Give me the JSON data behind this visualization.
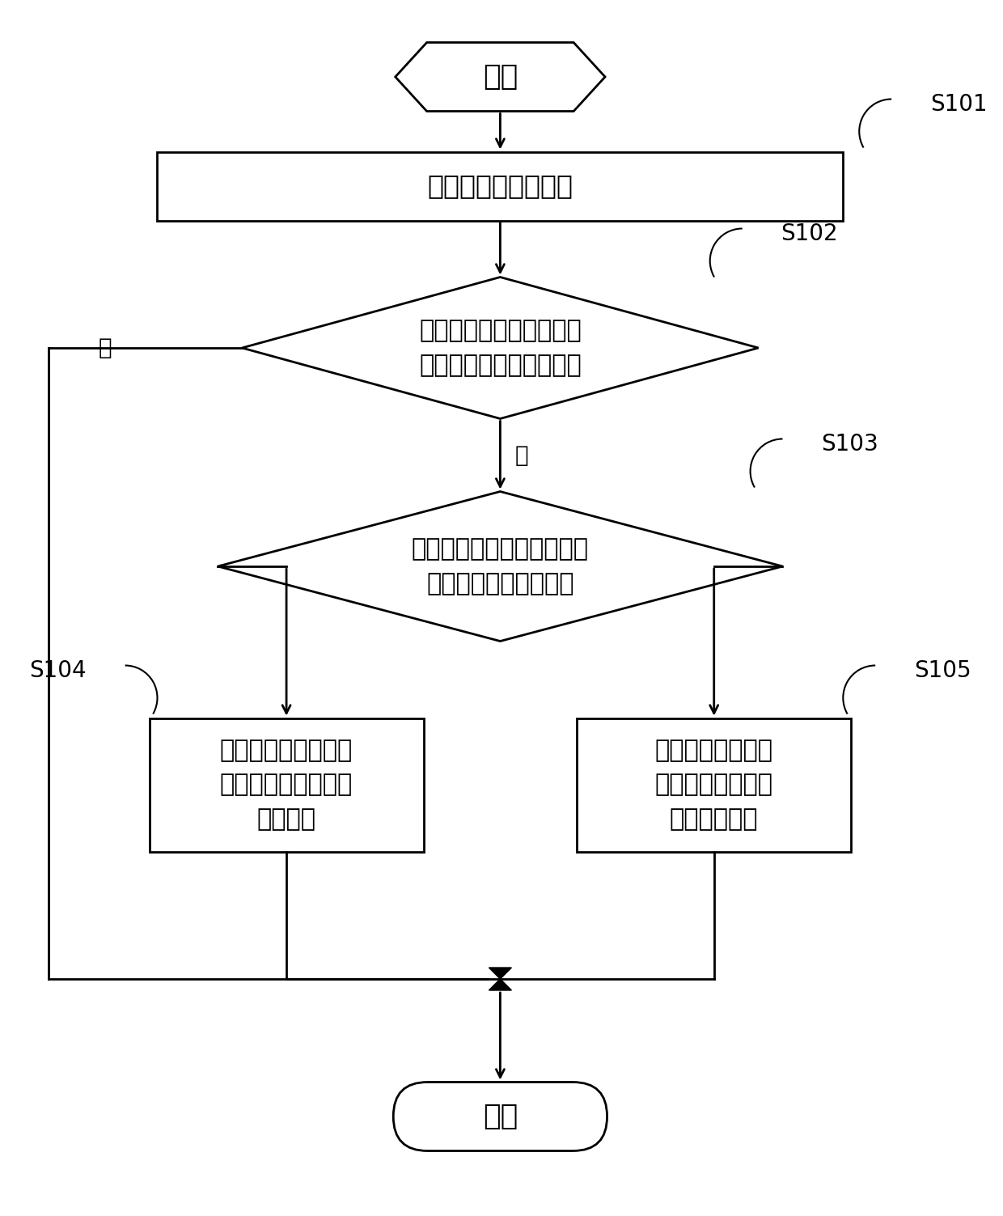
{
  "bg_color": "#ffffff",
  "line_color": "#000000",
  "text_color": "#000000",
  "start_text": "开始",
  "end_text": "结束",
  "step1_text": "获取喷烙冷媒过热度",
  "step2_text": "判断喷烙冷媒过热度是否\n处于预设过热度阀值范围",
  "step3_text": "判断喷烙冷媒过热度与预设\n过热度阀值范围的关系",
  "step4_text": "控制喷烙电子膨胀阀\n的开度增加预设第一\n开度步幅",
  "step5_text": "控制喷烙电子膨胀\n阀的开度减小预设\n第二开度步幅",
  "label1": "S101",
  "label2": "S102",
  "label3": "S103",
  "label4": "S104",
  "label5": "S105",
  "yes_text": "是",
  "no_text": "否",
  "font_size": 22,
  "font_size_label": 20,
  "font_size_yesno": 20
}
